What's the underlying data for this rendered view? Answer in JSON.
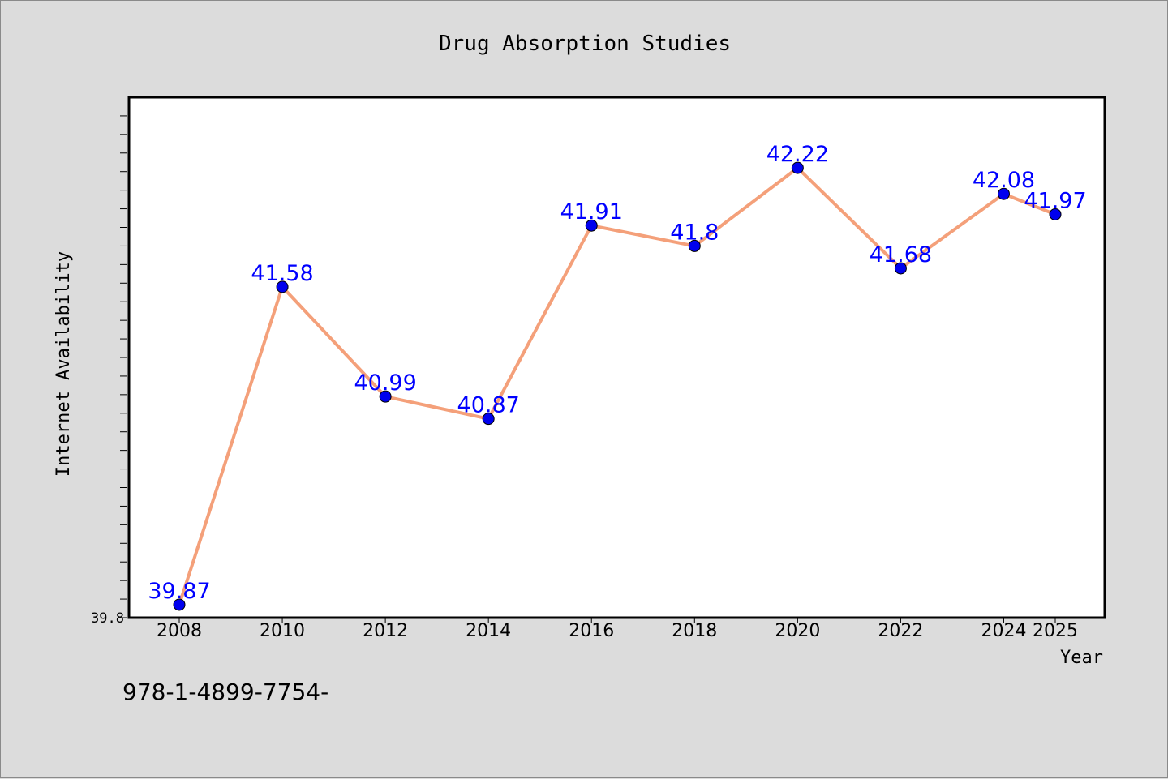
{
  "chart_data": {
    "type": "line",
    "title": "Drug Absorption Studies",
    "xlabel": "Year",
    "ylabel": "Internet Availability",
    "x": [
      2008,
      2010,
      2012,
      2014,
      2016,
      2018,
      2020,
      2022,
      2024,
      2025
    ],
    "x_tick_labels": [
      "2008",
      "2010",
      "2012",
      "2014",
      "2016",
      "2018",
      "2020",
      "2022",
      "2024",
      "2025"
    ],
    "series": [
      {
        "values": [
          39.87,
          41.58,
          40.99,
          40.87,
          41.91,
          41.8,
          42.22,
          41.68,
          42.08,
          41.97
        ],
        "data_labels": [
          "39.87",
          "41.58",
          "40.99",
          "40.87",
          "41.91",
          "41.8",
          "42.22",
          "41.68",
          "42.08",
          "41.97"
        ],
        "line_color": "#f4a07a",
        "marker_color": "#0000ee"
      }
    ],
    "ylim": [
      39.8,
      42.6
    ],
    "y_tick_labels": [
      "39.8"
    ],
    "label_color": "#0000ff",
    "grid": false,
    "legend": "none"
  },
  "footer_text": "978-1-4899-7754-"
}
